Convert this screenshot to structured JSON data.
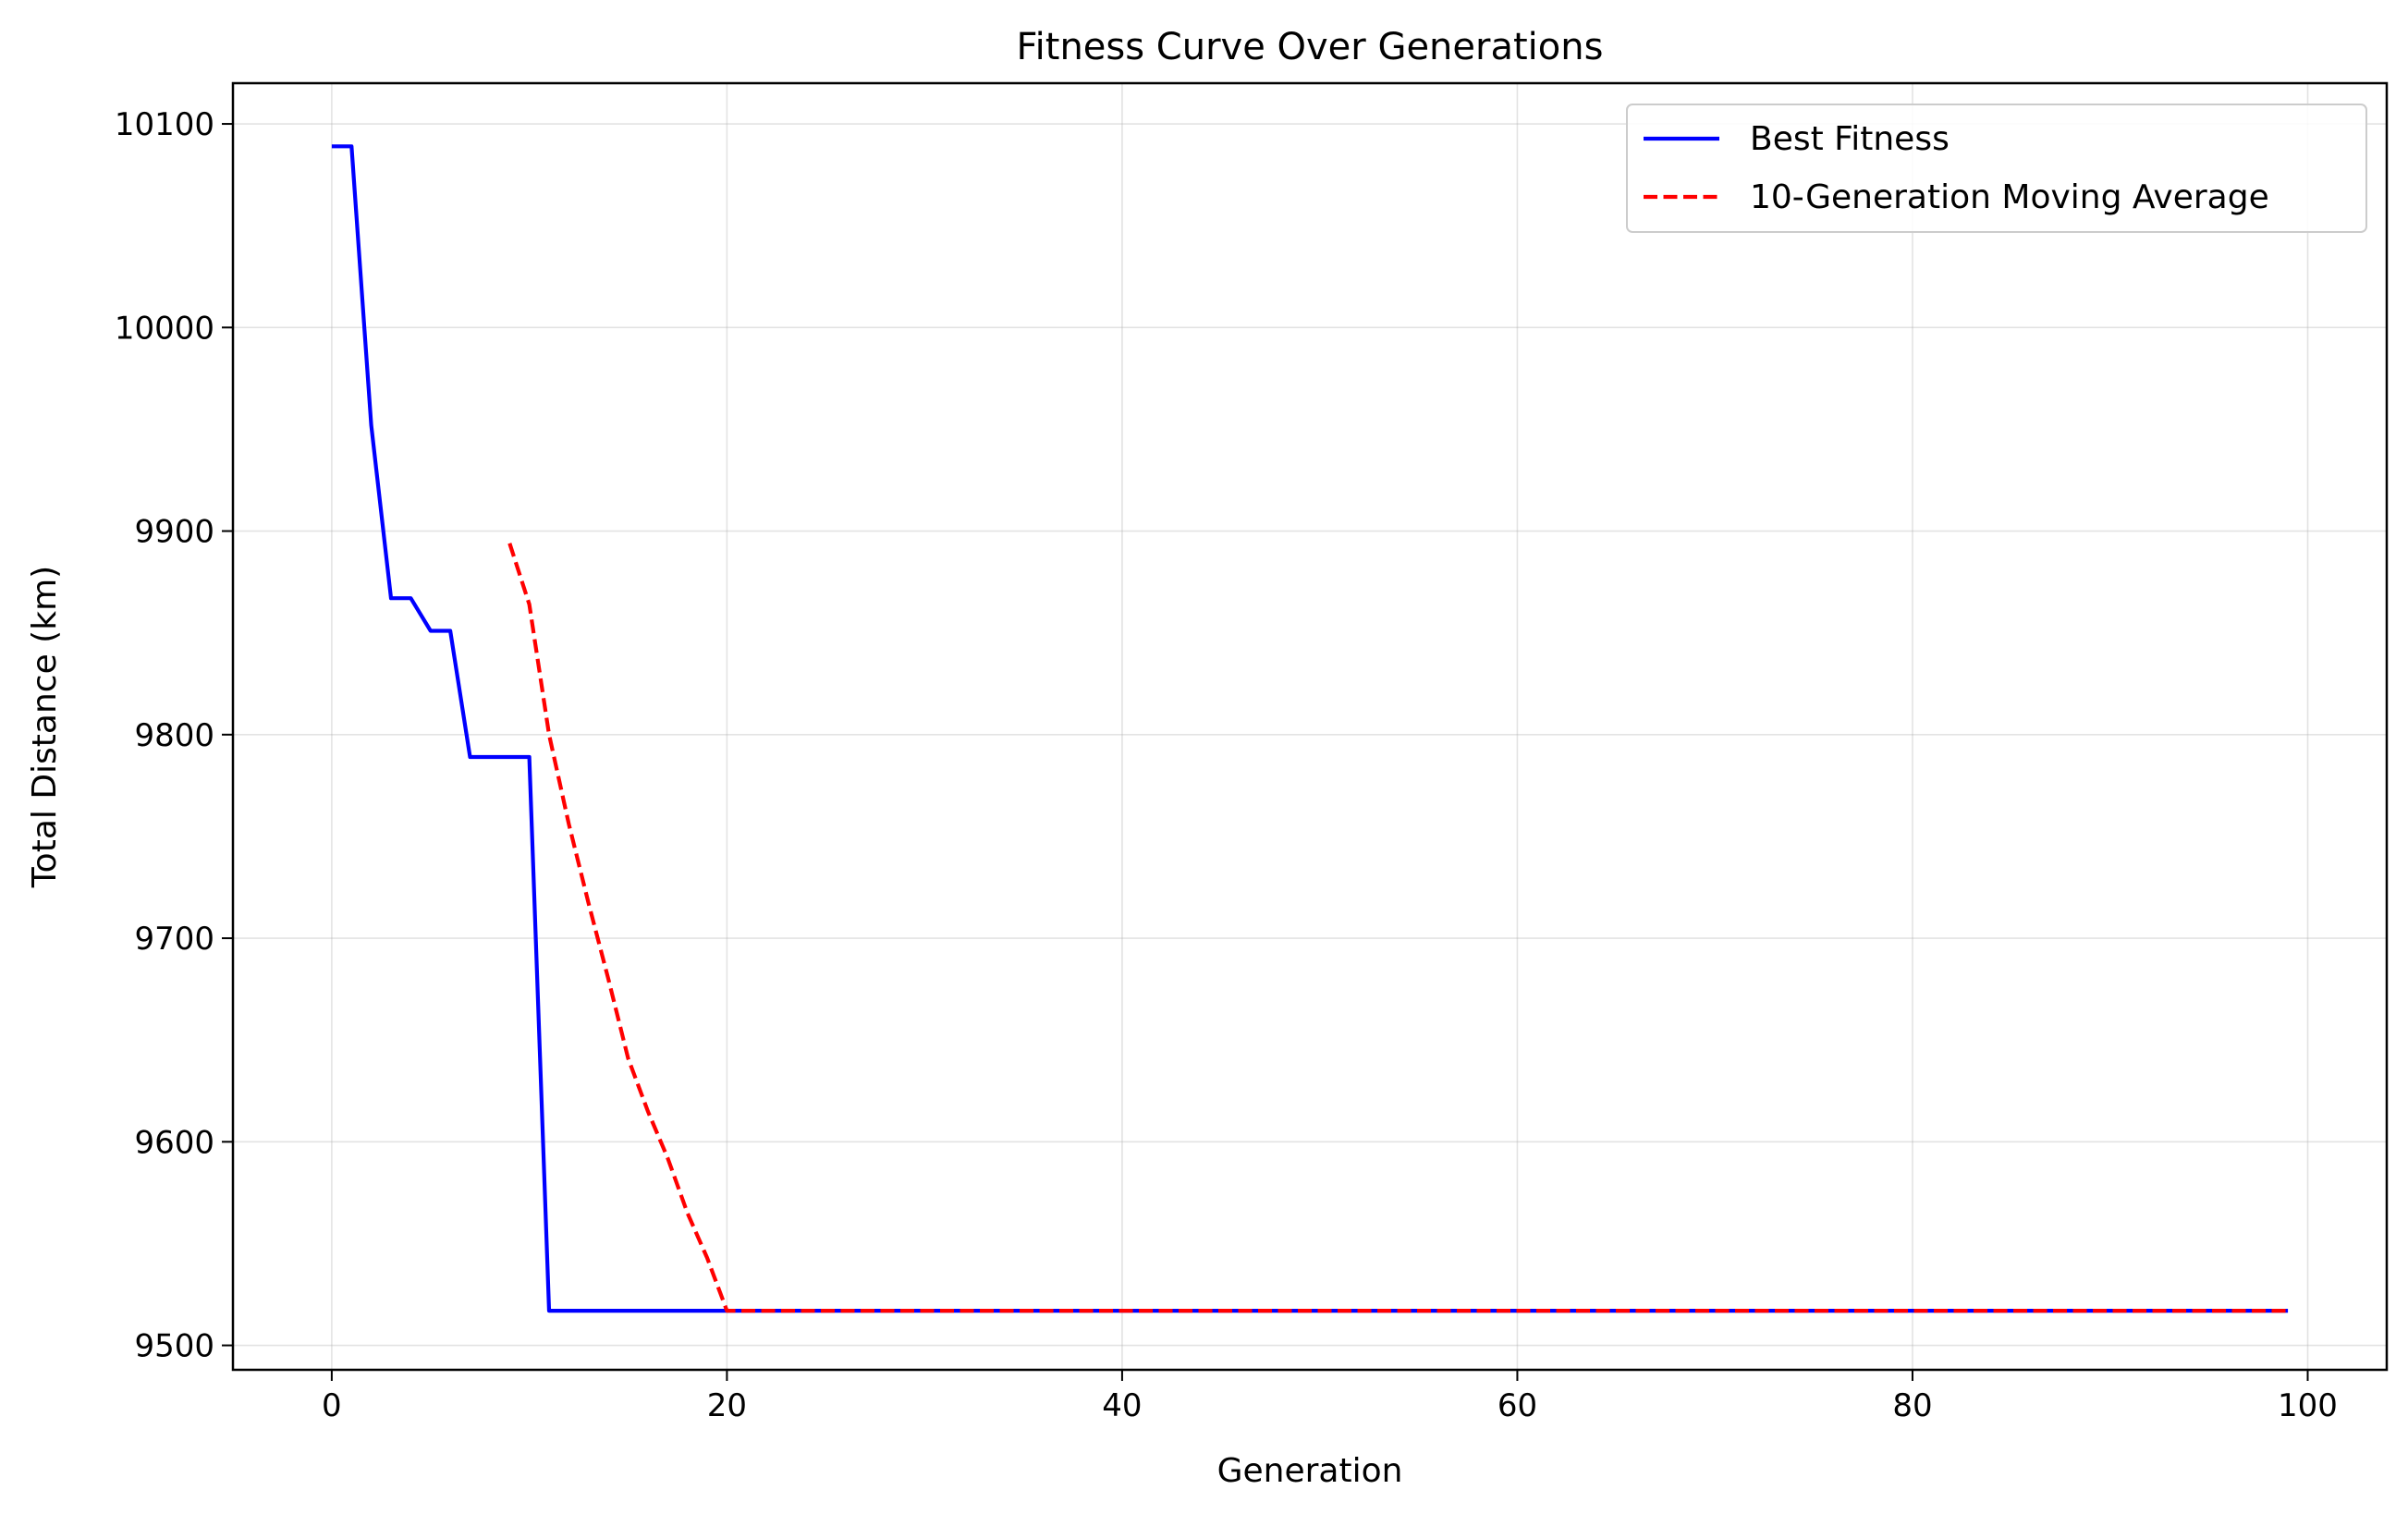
{
  "chart_data": {
    "type": "line",
    "title": "Fitness Curve Over Generations",
    "xlabel": "Generation",
    "ylabel": "Total Distance (km)",
    "xlim": [
      -5,
      104
    ],
    "ylim": [
      9488,
      10120
    ],
    "xticks": [
      0,
      20,
      40,
      60,
      80,
      100
    ],
    "yticks": [
      9500,
      9600,
      9700,
      9800,
      9900,
      10000,
      10100
    ],
    "grid": true,
    "legend_position": "top-right",
    "series": [
      {
        "name": "Best Fitness",
        "color": "#0000ff",
        "style": "solid",
        "points": [
          [
            0,
            10089
          ],
          [
            1,
            10089
          ],
          [
            2,
            9952
          ],
          [
            3,
            9867
          ],
          [
            4,
            9867
          ],
          [
            5,
            9851
          ],
          [
            6,
            9851
          ],
          [
            7,
            9789
          ],
          [
            8,
            9789
          ],
          [
            9,
            9789
          ],
          [
            10,
            9789
          ],
          [
            11,
            9517
          ],
          [
            99,
            9517
          ]
        ]
      },
      {
        "name": "10-Generation Moving Average",
        "color": "#ff0000",
        "style": "dashed",
        "points": [
          [
            9,
            9894
          ],
          [
            10,
            9864
          ],
          [
            11,
            9800
          ],
          [
            12,
            9756
          ],
          [
            13,
            9717
          ],
          [
            14,
            9680
          ],
          [
            15,
            9641
          ],
          [
            16,
            9615
          ],
          [
            17,
            9592
          ],
          [
            18,
            9565
          ],
          [
            19,
            9543
          ],
          [
            20,
            9517
          ],
          [
            99,
            9517
          ]
        ]
      }
    ]
  }
}
